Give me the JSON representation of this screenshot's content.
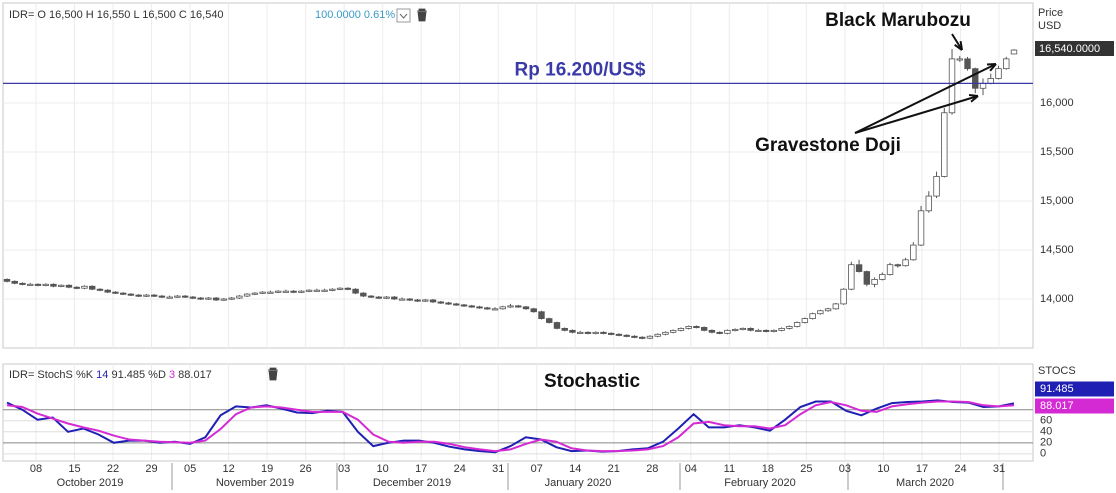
{
  "header": {
    "price_line": "IDR= O 16,500 H 16,550 L 16,500 C 16,540",
    "change": "100.0000 0.61%",
    "stoch_prefix": "IDR= StochS %K",
    "k_period": "14",
    "d_label": "%D",
    "d_period": "3",
    "axis_title_1": "Price",
    "axis_title_2": "USD",
    "stoch_axis_title": "STOCS",
    "last_price_label": "16,540.0000"
  },
  "x_axis": {
    "days": [
      "08",
      "15",
      "22",
      "29",
      "05",
      "12",
      "19",
      "26",
      "03",
      "10",
      "17",
      "24",
      "31",
      "07",
      "14",
      "21",
      "28",
      "04",
      "11",
      "18",
      "25",
      "03",
      "10",
      "17",
      "24",
      "31"
    ],
    "months": [
      "October 2019",
      "November 2019",
      "December 2019",
      "January 2020",
      "February 2020",
      "March 2020"
    ]
  },
  "chart_data": [
    {
      "type": "candlestick",
      "title": "Price",
      "ylim": [
        13500,
        17020
      ],
      "yticks": [
        {
          "value": 14000,
          "label": "14,000"
        },
        {
          "value": 14500,
          "label": "14,500"
        },
        {
          "value": 15000,
          "label": "15,000"
        },
        {
          "value": 15500,
          "label": "15,500"
        },
        {
          "value": 16000,
          "label": "16,000"
        }
      ],
      "up_color": "#ffffff",
      "down_color": "#555555",
      "hline": 16200,
      "hline_label": "Rp 16.200/US$",
      "hline_color": "#3a3aa8",
      "annotations": [
        "Black Marubozu",
        "Gravestone Doji"
      ],
      "candles": [
        [
          14200,
          14210,
          14170,
          14180
        ],
        [
          14180,
          14190,
          14150,
          14160
        ],
        [
          14160,
          14170,
          14140,
          14150
        ],
        [
          14150,
          14165,
          14135,
          14150
        ],
        [
          14150,
          14160,
          14130,
          14140
        ],
        [
          14140,
          14160,
          14130,
          14150
        ],
        [
          14150,
          14160,
          14120,
          14130
        ],
        [
          14130,
          14150,
          14120,
          14140
        ],
        [
          14140,
          14150,
          14110,
          14120
        ],
        [
          14120,
          14130,
          14100,
          14110
        ],
        [
          14110,
          14140,
          14100,
          14130
        ],
        [
          14130,
          14140,
          14090,
          14100
        ],
        [
          14100,
          14110,
          14080,
          14090
        ],
        [
          14090,
          14100,
          14060,
          14070
        ],
        [
          14070,
          14080,
          14050,
          14060
        ],
        [
          14060,
          14070,
          14040,
          14050
        ],
        [
          14050,
          14060,
          14030,
          14040
        ],
        [
          14040,
          14050,
          14020,
          14030
        ],
        [
          14030,
          14050,
          14020,
          14040
        ],
        [
          14040,
          14050,
          14020,
          14030
        ],
        [
          14030,
          14040,
          14010,
          14020
        ],
        [
          14020,
          14035,
          14005,
          14020
        ],
        [
          14020,
          14040,
          14010,
          14030
        ],
        [
          14030,
          14040,
          14010,
          14020
        ],
        [
          14020,
          14030,
          14000,
          14010
        ],
        [
          14010,
          14020,
          13990,
          14000
        ],
        [
          14000,
          14020,
          13990,
          14010
        ],
        [
          14010,
          14020,
          13980,
          13990
        ],
        [
          13990,
          14010,
          13980,
          14000
        ],
        [
          14000,
          14020,
          13990,
          14010
        ],
        [
          14010,
          14040,
          14000,
          14030
        ],
        [
          14030,
          14060,
          14020,
          14050
        ],
        [
          14050,
          14070,
          14040,
          14060
        ],
        [
          14060,
          14080,
          14050,
          14070
        ],
        [
          14070,
          14085,
          14055,
          14070
        ],
        [
          14070,
          14090,
          14060,
          14080
        ],
        [
          14080,
          14095,
          14065,
          14080
        ],
        [
          14080,
          14090,
          14060,
          14070
        ],
        [
          14070,
          14090,
          14060,
          14080
        ],
        [
          14080,
          14100,
          14070,
          14090
        ],
        [
          14090,
          14105,
          14075,
          14090
        ],
        [
          14090,
          14105,
          14075,
          14090
        ],
        [
          14090,
          14110,
          14080,
          14100
        ],
        [
          14100,
          14120,
          14090,
          14110
        ],
        [
          14110,
          14120,
          14090,
          14100
        ],
        [
          14100,
          14110,
          14050,
          14060
        ],
        [
          14060,
          14070,
          14020,
          14030
        ],
        [
          14030,
          14040,
          14010,
          14020
        ],
        [
          14020,
          14030,
          14000,
          14010
        ],
        [
          14010,
          14030,
          14000,
          14020
        ],
        [
          14020,
          14030,
          13990,
          14000
        ],
        [
          14000,
          14015,
          13985,
          14000
        ],
        [
          14000,
          14010,
          13980,
          13990
        ],
        [
          13990,
          14000,
          13970,
          13980
        ],
        [
          13980,
          14000,
          13970,
          13990
        ],
        [
          13990,
          14000,
          13960,
          13970
        ],
        [
          13970,
          13980,
          13950,
          13960
        ],
        [
          13960,
          13970,
          13940,
          13950
        ],
        [
          13950,
          13960,
          13930,
          13940
        ],
        [
          13940,
          13950,
          13920,
          13930
        ],
        [
          13930,
          13940,
          13910,
          13920
        ],
        [
          13920,
          13930,
          13900,
          13910
        ],
        [
          13910,
          13920,
          13890,
          13900
        ],
        [
          13900,
          13915,
          13885,
          13900
        ],
        [
          13900,
          13930,
          13890,
          13920
        ],
        [
          13920,
          13950,
          13910,
          13930
        ],
        [
          13930,
          13940,
          13910,
          13920
        ],
        [
          13920,
          13930,
          13890,
          13900
        ],
        [
          13900,
          13910,
          13860,
          13870
        ],
        [
          13870,
          13880,
          13790,
          13800
        ],
        [
          13800,
          13810,
          13750,
          13760
        ],
        [
          13760,
          13770,
          13690,
          13700
        ],
        [
          13700,
          13710,
          13670,
          13680
        ],
        [
          13680,
          13690,
          13650,
          13660
        ],
        [
          13660,
          13675,
          13645,
          13660
        ],
        [
          13660,
          13670,
          13640,
          13650
        ],
        [
          13650,
          13670,
          13640,
          13660
        ],
        [
          13660,
          13670,
          13640,
          13650
        ],
        [
          13650,
          13660,
          13630,
          13640
        ],
        [
          13640,
          13650,
          13620,
          13630
        ],
        [
          13630,
          13640,
          13610,
          13620
        ],
        [
          13620,
          13630,
          13600,
          13610
        ],
        [
          13610,
          13620,
          13590,
          13600
        ],
        [
          13600,
          13630,
          13590,
          13620
        ],
        [
          13620,
          13650,
          13610,
          13640
        ],
        [
          13640,
          13670,
          13630,
          13660
        ],
        [
          13660,
          13690,
          13650,
          13680
        ],
        [
          13680,
          13710,
          13670,
          13700
        ],
        [
          13700,
          13730,
          13690,
          13720
        ],
        [
          13720,
          13730,
          13700,
          13710
        ],
        [
          13710,
          13720,
          13670,
          13680
        ],
        [
          13680,
          13690,
          13650,
          13660
        ],
        [
          13660,
          13670,
          13640,
          13650
        ],
        [
          13650,
          13690,
          13640,
          13680
        ],
        [
          13680,
          13700,
          13670,
          13690
        ],
        [
          13690,
          13710,
          13680,
          13700
        ],
        [
          13700,
          13710,
          13670,
          13680
        ],
        [
          13680,
          13695,
          13665,
          13680
        ],
        [
          13680,
          13690,
          13660,
          13670
        ],
        [
          13670,
          13690,
          13660,
          13680
        ],
        [
          13680,
          13710,
          13670,
          13700
        ],
        [
          13700,
          13730,
          13690,
          13720
        ],
        [
          13720,
          13770,
          13710,
          13760
        ],
        [
          13760,
          13810,
          13750,
          13800
        ],
        [
          13800,
          13860,
          13790,
          13850
        ],
        [
          13850,
          13890,
          13840,
          13880
        ],
        [
          13880,
          13910,
          13870,
          13900
        ],
        [
          13900,
          13960,
          13890,
          13950
        ],
        [
          13950,
          14110,
          13940,
          14100
        ],
        [
          14100,
          14380,
          14090,
          14350
        ],
        [
          14350,
          14400,
          14270,
          14280
        ],
        [
          14280,
          14290,
          14130,
          14150
        ],
        [
          14150,
          14220,
          14120,
          14200
        ],
        [
          14200,
          14270,
          14190,
          14250
        ],
        [
          14250,
          14370,
          14240,
          14350
        ],
        [
          14350,
          14360,
          14320,
          14340
        ],
        [
          14340,
          14420,
          14330,
          14400
        ],
        [
          14400,
          14580,
          14390,
          14550
        ],
        [
          14550,
          14950,
          14540,
          14900
        ],
        [
          14900,
          15100,
          14880,
          15050
        ],
        [
          15050,
          15300,
          15030,
          15250
        ],
        [
          15250,
          15950,
          15240,
          15900
        ],
        [
          15900,
          16550,
          15880,
          16450
        ],
        [
          16450,
          16480,
          16420,
          16450
        ],
        [
          16450,
          16470,
          16330,
          16350
        ],
        [
          16350,
          16360,
          16100,
          16150
        ],
        [
          16150,
          16250,
          16080,
          16200
        ],
        [
          16200,
          16300,
          16190,
          16250
        ],
        [
          16250,
          16380,
          16240,
          16350
        ],
        [
          16350,
          16470,
          16340,
          16450
        ],
        [
          16500,
          16550,
          16500,
          16540
        ]
      ]
    },
    {
      "type": "line",
      "title": "Stochastic",
      "ylim": [
        -13,
        163
      ],
      "yticks": [
        0,
        20,
        40,
        60,
        80
      ],
      "dark_gridlines": [
        20,
        80
      ],
      "series": [
        {
          "name": "%K",
          "color": "#1f1fb4",
          "values": [
            93,
            80,
            62,
            66,
            40,
            46,
            35,
            20,
            24,
            24,
            20,
            22,
            18,
            30,
            70,
            86,
            84,
            88,
            82,
            75,
            74,
            78,
            76,
            40,
            14,
            20,
            24,
            24,
            20,
            13,
            8,
            5,
            3,
            14,
            30,
            26,
            12,
            5,
            6,
            4,
            5,
            8,
            10,
            22,
            46,
            72,
            48,
            48,
            52,
            48,
            42,
            62,
            85,
            95,
            95,
            78,
            70,
            82,
            92,
            94,
            95,
            97,
            94,
            93,
            85,
            86,
            91.485
          ]
        },
        {
          "name": "%D",
          "color": "#d42ad4",
          "values": [
            88,
            85,
            73,
            64,
            55,
            48,
            42,
            33,
            26,
            24,
            22,
            21,
            20,
            24,
            45,
            72,
            84,
            86,
            84,
            80,
            76,
            76,
            76,
            62,
            35,
            22,
            20,
            22,
            22,
            18,
            12,
            8,
            5,
            8,
            18,
            26,
            22,
            10,
            6,
            5,
            5,
            6,
            8,
            14,
            30,
            55,
            58,
            52,
            50,
            50,
            46,
            52,
            72,
            88,
            94,
            88,
            78,
            76,
            86,
            90,
            93,
            95,
            95,
            94,
            88,
            86,
            88.017
          ]
        }
      ]
    }
  ]
}
